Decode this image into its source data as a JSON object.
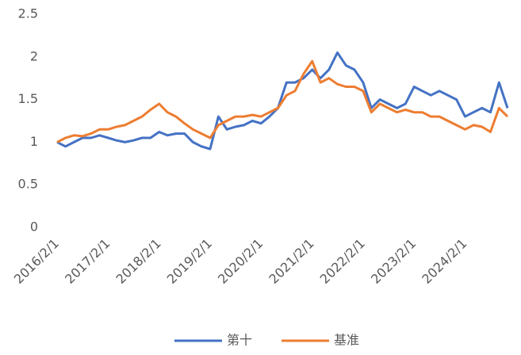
{
  "chart_data": {
    "type": "line",
    "x": [
      "2016/2/1",
      "2016/4/1",
      "2016/6/1",
      "2016/8/1",
      "2016/10/1",
      "2016/12/1",
      "2017/2/1",
      "2017/4/1",
      "2017/6/1",
      "2017/8/1",
      "2017/10/1",
      "2017/12/1",
      "2018/2/1",
      "2018/4/1",
      "2018/6/1",
      "2018/8/1",
      "2018/10/1",
      "2018/12/1",
      "2019/2/1",
      "2019/4/1",
      "2019/6/1",
      "2019/8/1",
      "2019/10/1",
      "2019/12/1",
      "2020/2/1",
      "2020/4/1",
      "2020/6/1",
      "2020/8/1",
      "2020/10/1",
      "2020/12/1",
      "2021/2/1",
      "2021/4/1",
      "2021/6/1",
      "2021/8/1",
      "2021/10/1",
      "2021/12/1",
      "2022/2/1",
      "2022/4/1",
      "2022/6/1",
      "2022/8/1",
      "2022/10/1",
      "2022/12/1",
      "2023/2/1",
      "2023/4/1",
      "2023/6/1",
      "2023/8/1",
      "2023/10/1",
      "2023/12/1",
      "2024/2/1",
      "2024/4/1",
      "2024/6/1",
      "2024/8/1",
      "2024/10/1",
      "2024/12/1"
    ],
    "series": [
      {
        "name": "第十",
        "color": "#4472c4",
        "values": [
          1.0,
          0.95,
          1.0,
          1.05,
          1.05,
          1.08,
          1.05,
          1.02,
          1.0,
          1.02,
          1.05,
          1.05,
          1.12,
          1.08,
          1.1,
          1.1,
          1.0,
          0.95,
          0.92,
          1.3,
          1.15,
          1.18,
          1.2,
          1.25,
          1.22,
          1.3,
          1.4,
          1.7,
          1.7,
          1.75,
          1.85,
          1.75,
          1.85,
          2.05,
          1.9,
          1.85,
          1.7,
          1.4,
          1.5,
          1.45,
          1.4,
          1.45,
          1.65,
          1.6,
          1.55,
          1.6,
          1.55,
          1.5,
          1.3,
          1.35,
          1.4,
          1.35,
          1.7,
          1.4
        ]
      },
      {
        "name": "基准",
        "color": "#ed7d31",
        "values": [
          1.0,
          1.05,
          1.08,
          1.07,
          1.1,
          1.15,
          1.15,
          1.18,
          1.2,
          1.25,
          1.3,
          1.38,
          1.45,
          1.35,
          1.3,
          1.22,
          1.15,
          1.1,
          1.05,
          1.2,
          1.25,
          1.3,
          1.3,
          1.32,
          1.3,
          1.35,
          1.4,
          1.55,
          1.6,
          1.8,
          1.95,
          1.7,
          1.75,
          1.68,
          1.65,
          1.65,
          1.6,
          1.35,
          1.45,
          1.4,
          1.35,
          1.38,
          1.35,
          1.35,
          1.3,
          1.3,
          1.25,
          1.2,
          1.15,
          1.2,
          1.18,
          1.12,
          1.4,
          1.3
        ]
      }
    ],
    "xlim": [
      "2016/2/1",
      "2024/12/1"
    ],
    "xticks": [
      "2016/2/1",
      "2017/2/1",
      "2018/2/1",
      "2019/2/1",
      "2020/2/1",
      "2021/2/1",
      "2022/2/1",
      "2023/2/1",
      "2024/2/1"
    ],
    "ylim": [
      0,
      2.5
    ],
    "yticks": [
      0,
      0.5,
      1,
      1.5,
      2,
      2.5
    ],
    "grid": false,
    "legend": "bottom"
  }
}
